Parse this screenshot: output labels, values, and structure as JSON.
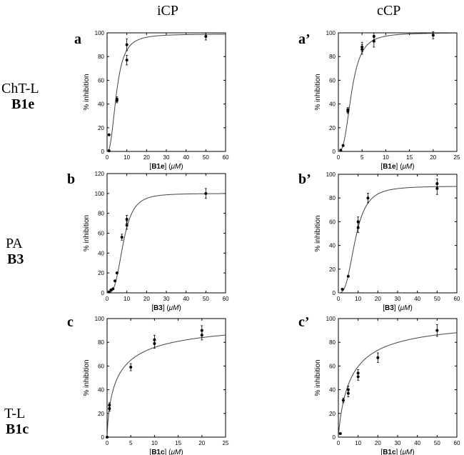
{
  "headers": {
    "col_left": "iCP",
    "col_right": "cCP"
  },
  "rows": [
    {
      "line1": "ChT-L",
      "line2": "B1e"
    },
    {
      "line1": "PA",
      "line2": "B3"
    },
    {
      "line1": "T-L",
      "line2": "B1c"
    }
  ],
  "chart_data": [
    {
      "id": "a",
      "letter": "a",
      "type": "scatter",
      "ylabel": "% inhibition",
      "xlabel": {
        "compound": "B1e",
        "unit": "μM"
      },
      "xlim": [
        0,
        60
      ],
      "ylim": [
        0,
        100
      ],
      "xticks": [
        0,
        10,
        20,
        30,
        40,
        50,
        60
      ],
      "yticks": [
        0,
        20,
        40,
        60,
        80,
        100
      ],
      "points": [
        {
          "x": 1,
          "y": 14,
          "err": 0
        },
        {
          "x": 1,
          "y": 0.5,
          "err": 0
        },
        {
          "x": 5,
          "y": 43,
          "err": 2
        },
        {
          "x": 5,
          "y": 44,
          "err": 2
        },
        {
          "x": 10,
          "y": 77,
          "err": 4
        },
        {
          "x": 10,
          "y": 90,
          "err": 5
        },
        {
          "x": 50,
          "y": 97,
          "err": 3
        }
      ],
      "curve": {
        "top": 99,
        "ec50": 4.8,
        "hill": 2.5
      }
    },
    {
      "id": "a2",
      "letter": "a’",
      "type": "scatter",
      "ylabel": "% inhibition",
      "xlabel": {
        "compound": "B1e",
        "unit": "μM"
      },
      "xlim": [
        0,
        25
      ],
      "ylim": [
        0,
        100
      ],
      "xticks": [
        0,
        5,
        10,
        15,
        20,
        25
      ],
      "yticks": [
        0,
        20,
        40,
        60,
        80,
        100
      ],
      "points": [
        {
          "x": 0.5,
          "y": 1,
          "err": 0
        },
        {
          "x": 1,
          "y": 5,
          "err": 0
        },
        {
          "x": 2,
          "y": 34,
          "err": 2
        },
        {
          "x": 2,
          "y": 35,
          "err": 2
        },
        {
          "x": 5,
          "y": 86,
          "err": 4
        },
        {
          "x": 5,
          "y": 88,
          "err": 4
        },
        {
          "x": 7.5,
          "y": 93,
          "err": 5
        },
        {
          "x": 7.5,
          "y": 97,
          "err": 3
        },
        {
          "x": 20,
          "y": 98,
          "err": 3
        }
      ],
      "curve": {
        "top": 100,
        "ec50": 2.8,
        "hill": 2.8
      }
    },
    {
      "id": "b",
      "letter": "b",
      "type": "scatter",
      "ylabel": "% inhibition",
      "xlabel": {
        "compound": "B3",
        "unit": "μM"
      },
      "xlim": [
        0,
        60
      ],
      "ylim": [
        0,
        120
      ],
      "xticks": [
        0,
        10,
        20,
        30,
        40,
        50,
        60
      ],
      "yticks": [
        0,
        20,
        40,
        60,
        80,
        100,
        120
      ],
      "points": [
        {
          "x": 1,
          "y": 1,
          "err": 0
        },
        {
          "x": 2,
          "y": 3,
          "err": 0
        },
        {
          "x": 3,
          "y": 4,
          "err": 0
        },
        {
          "x": 4,
          "y": 12,
          "err": 0
        },
        {
          "x": 5,
          "y": 20,
          "err": 0
        },
        {
          "x": 7.5,
          "y": 56,
          "err": 3
        },
        {
          "x": 10,
          "y": 68,
          "err": 4
        },
        {
          "x": 10,
          "y": 74,
          "err": 4
        },
        {
          "x": 50,
          "y": 100,
          "err": 5
        }
      ],
      "curve": {
        "top": 100,
        "ec50": 8.2,
        "hill": 3.3
      }
    },
    {
      "id": "b2",
      "letter": "b’",
      "type": "scatter",
      "ylabel": "% inhibition",
      "xlabel": {
        "compound": "B3",
        "unit": "μM"
      },
      "xlim": [
        0,
        60
      ],
      "ylim": [
        0,
        100
      ],
      "xticks": [
        0,
        10,
        20,
        30,
        40,
        50,
        60
      ],
      "yticks": [
        0,
        20,
        40,
        60,
        80,
        100
      ],
      "points": [
        {
          "x": 2,
          "y": 3,
          "err": 0
        },
        {
          "x": 5,
          "y": 14,
          "err": 0
        },
        {
          "x": 10,
          "y": 55,
          "err": 4
        },
        {
          "x": 10,
          "y": 60,
          "err": 4
        },
        {
          "x": 15,
          "y": 80,
          "err": 4
        },
        {
          "x": 50,
          "y": 88,
          "err": 5
        },
        {
          "x": 50,
          "y": 92,
          "err": 4
        }
      ],
      "curve": {
        "top": 90,
        "ec50": 8.6,
        "hill": 3.0
      }
    },
    {
      "id": "c",
      "letter": "c",
      "type": "scatter",
      "ylabel": "% inhibition",
      "xlabel": {
        "compound": "B1c",
        "unit": "μM"
      },
      "xlim": [
        0,
        25
      ],
      "ylim": [
        0,
        100
      ],
      "xticks": [
        0,
        5,
        10,
        15,
        20,
        25
      ],
      "yticks": [
        0,
        20,
        40,
        60,
        80,
        100
      ],
      "points": [
        {
          "x": 0,
          "y": 0,
          "err": 0
        },
        {
          "x": 0.5,
          "y": 24,
          "err": 2
        },
        {
          "x": 0.5,
          "y": 27,
          "err": 2
        },
        {
          "x": 5,
          "y": 59,
          "err": 3
        },
        {
          "x": 10,
          "y": 79,
          "err": 4
        },
        {
          "x": 10,
          "y": 82,
          "err": 4
        },
        {
          "x": 20,
          "y": 86,
          "err": 4
        },
        {
          "x": 20,
          "y": 90,
          "err": 4
        }
      ],
      "curve": {
        "top": 100,
        "ec50": 2.2,
        "hill": 0.75
      }
    },
    {
      "id": "c2",
      "letter": "c’",
      "type": "scatter",
      "ylabel": "% inhibition",
      "xlabel": {
        "compound": "B1c",
        "unit": "μM"
      },
      "xlim": [
        0,
        60
      ],
      "ylim": [
        0,
        100
      ],
      "xticks": [
        0,
        10,
        20,
        30,
        40,
        50,
        60
      ],
      "yticks": [
        0,
        20,
        40,
        60,
        80,
        100
      ],
      "points": [
        {
          "x": 1,
          "y": 3,
          "err": 0
        },
        {
          "x": 2.5,
          "y": 31,
          "err": 2
        },
        {
          "x": 5,
          "y": 37,
          "err": 3
        },
        {
          "x": 5,
          "y": 40,
          "err": 3
        },
        {
          "x": 10,
          "y": 51,
          "err": 3
        },
        {
          "x": 10,
          "y": 54,
          "err": 3
        },
        {
          "x": 20,
          "y": 67,
          "err": 4
        },
        {
          "x": 50,
          "y": 90,
          "err": 5
        }
      ],
      "curve": {
        "top": 100,
        "ec50": 6.5,
        "hill": 0.9
      }
    }
  ]
}
